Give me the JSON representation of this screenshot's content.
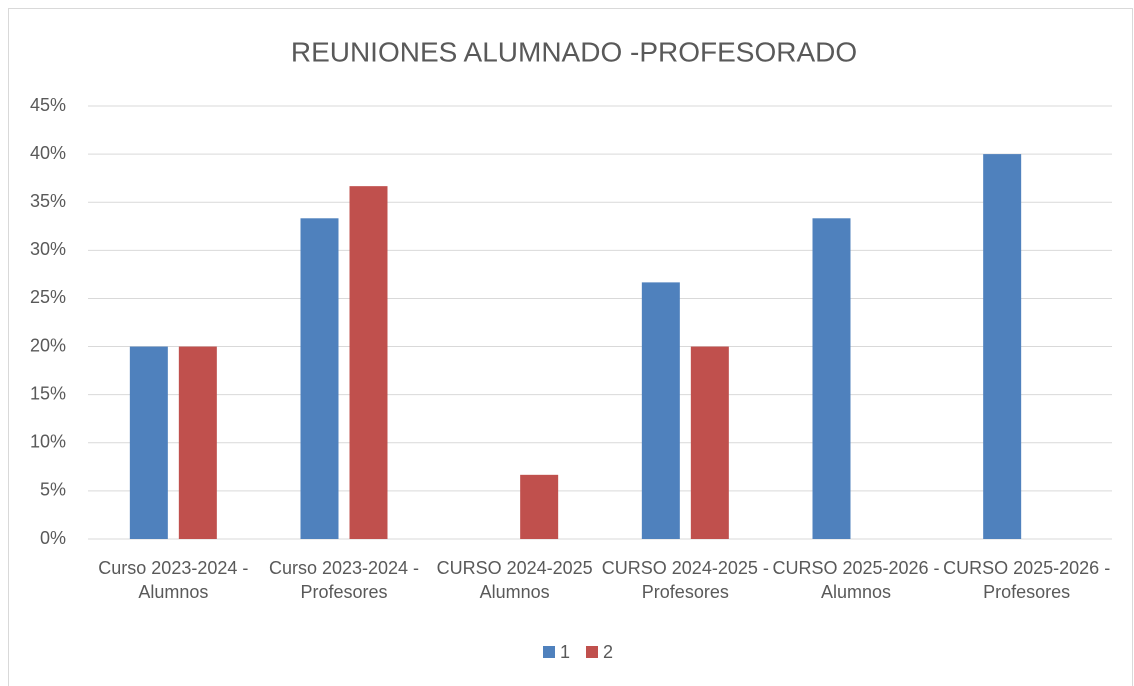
{
  "chart_data": {
    "type": "bar",
    "title": "REUNIONES ALUMNADO -PROFESORADO",
    "categories": [
      "Curso 2023-2024 - Alumnos",
      "Curso 2023-2024 -Profesores",
      "CURSO 2024-2025 Alumnos",
      "CURSO 2024-2025 -Profesores",
      "CURSO 2025-2026 -Alumnos",
      "CURSO 2025-2026 -Profesores"
    ],
    "series": [
      {
        "name": "1",
        "color": "#4f81bd",
        "values": [
          20,
          33.33,
          0,
          26.67,
          33.33,
          40
        ]
      },
      {
        "name": "2",
        "color": "#c0504d",
        "values": [
          20,
          36.67,
          6.67,
          20,
          0,
          0
        ]
      }
    ],
    "ylim": [
      0,
      45
    ],
    "yticks": [
      {
        "value": 0,
        "label": "0%"
      },
      {
        "value": 5,
        "label": "5%"
      },
      {
        "value": 10,
        "label": "10%"
      },
      {
        "value": 15,
        "label": "15%"
      },
      {
        "value": 20,
        "label": "20%"
      },
      {
        "value": 25,
        "label": "25%"
      },
      {
        "value": 30,
        "label": "30%"
      },
      {
        "value": 35,
        "label": "35%"
      },
      {
        "value": 40,
        "label": "40%"
      },
      {
        "value": 45,
        "label": "45%"
      }
    ],
    "grid": true,
    "legend": "bottom"
  }
}
